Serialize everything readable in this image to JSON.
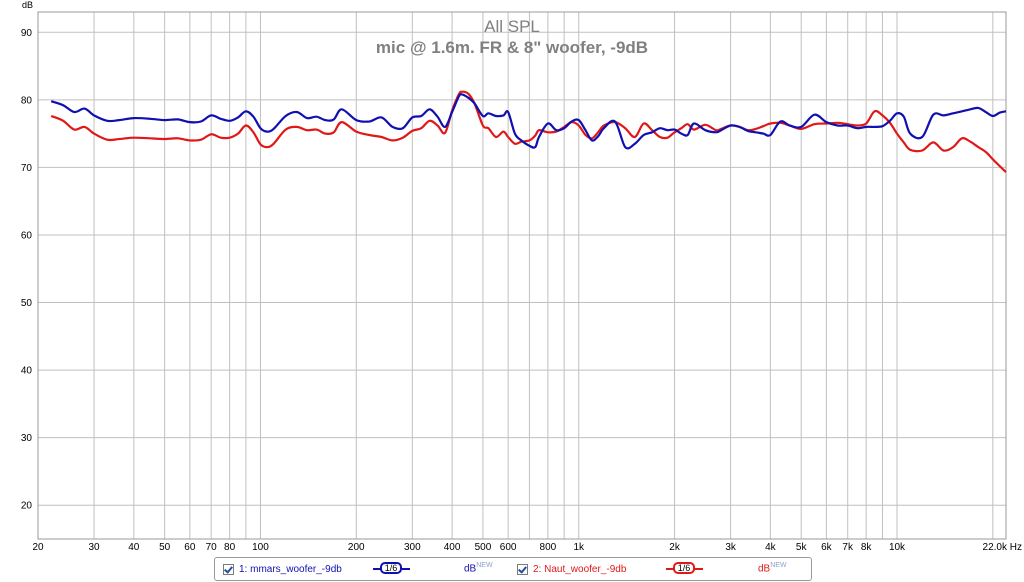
{
  "colors": {
    "series1": "#1010b0",
    "series2": "#e01818",
    "grid": "#c0c0c0",
    "title": "#808080",
    "axis": "#9a9a9a"
  },
  "chart_data": {
    "type": "line",
    "title": "All SPL",
    "subtitle": "mic @ 1.6m. FR & 8\" woofer, -9dB",
    "ylabel": "dB",
    "xlabel": "",
    "x_unit": "Hz",
    "x_scale": "log",
    "xlim": [
      20,
      22000
    ],
    "ylim": [
      15,
      93
    ],
    "y_ticks": [
      20,
      30,
      40,
      50,
      60,
      70,
      80,
      90
    ],
    "x_ticks": [
      {
        "v": 20,
        "label": "20"
      },
      {
        "v": 30,
        "label": "30"
      },
      {
        "v": 40,
        "label": "40"
      },
      {
        "v": 50,
        "label": "50"
      },
      {
        "v": 60,
        "label": "60"
      },
      {
        "v": 70,
        "label": "70"
      },
      {
        "v": 80,
        "label": "80"
      },
      {
        "v": 100,
        "label": "100"
      },
      {
        "v": 200,
        "label": "200"
      },
      {
        "v": 300,
        "label": "300"
      },
      {
        "v": 400,
        "label": "400"
      },
      {
        "v": 500,
        "label": "500"
      },
      {
        "v": 600,
        "label": "600"
      },
      {
        "v": 800,
        "label": "800"
      },
      {
        "v": 1000,
        "label": "1k"
      },
      {
        "v": 2000,
        "label": "2k"
      },
      {
        "v": 3000,
        "label": "3k"
      },
      {
        "v": 4000,
        "label": "4k"
      },
      {
        "v": 5000,
        "label": "5k"
      },
      {
        "v": 6000,
        "label": "6k"
      },
      {
        "v": 7000,
        "label": "7k"
      },
      {
        "v": 8000,
        "label": "8k"
      },
      {
        "v": 10000,
        "label": "10k"
      },
      {
        "v": 22000,
        "label": "22.0k Hz"
      }
    ],
    "grid": true,
    "series": [
      {
        "name": "1: mmars_woofer_-9db",
        "x": [
          22,
          24,
          26,
          28,
          30,
          33,
          36,
          40,
          45,
          50,
          55,
          60,
          65,
          70,
          75,
          80,
          85,
          90,
          95,
          100,
          105,
          110,
          120,
          130,
          140,
          150,
          160,
          170,
          180,
          200,
          220,
          240,
          260,
          280,
          300,
          320,
          340,
          360,
          380,
          400,
          420,
          430,
          450,
          470,
          500,
          520,
          550,
          580,
          600,
          630,
          660,
          700,
          730,
          750,
          800,
          850,
          900,
          950,
          1000,
          1050,
          1100,
          1150,
          1200,
          1300,
          1400,
          1500,
          1600,
          1700,
          1800,
          1900,
          2000,
          2100,
          2200,
          2300,
          2500,
          2700,
          2800,
          3000,
          3200,
          3400,
          3600,
          3800,
          4000,
          4300,
          4600,
          5000,
          5500,
          6000,
          6500,
          7000,
          7500,
          8000,
          8500,
          9000,
          9500,
          10000,
          10500,
          11000,
          12000,
          13000,
          14000,
          15000,
          16000,
          17000,
          18000,
          19000,
          20000,
          21000,
          22000
        ],
        "y": [
          79.8,
          79.2,
          78.2,
          78.7,
          77.7,
          76.9,
          77.0,
          77.3,
          77.2,
          77.0,
          77.1,
          76.7,
          76.8,
          77.7,
          77.2,
          76.9,
          77.4,
          78.3,
          77.5,
          75.8,
          75.3,
          75.7,
          77.6,
          78.2,
          77.3,
          77.5,
          77.0,
          77.1,
          78.6,
          77.0,
          76.8,
          77.4,
          76.0,
          75.8,
          77.4,
          77.6,
          78.6,
          77.5,
          76.0,
          78.2,
          80.5,
          80.8,
          80.3,
          79.5,
          77.6,
          78.0,
          77.6,
          77.7,
          78.2,
          75.0,
          74.0,
          73.2,
          73.0,
          74.5,
          76.5,
          75.5,
          75.8,
          76.8,
          77.0,
          75.5,
          74.0,
          74.6,
          75.8,
          76.8,
          73.0,
          73.5,
          74.8,
          75.2,
          75.8,
          75.5,
          75.6,
          75.0,
          74.8,
          76.5,
          75.5,
          75.2,
          75.5,
          76.2,
          76.0,
          75.4,
          75.2,
          75.0,
          74.8,
          76.8,
          76.2,
          76.0,
          77.8,
          76.7,
          76.2,
          76.2,
          75.8,
          76.0,
          76.0,
          76.1,
          76.9,
          78.0,
          77.5,
          75.0,
          74.5,
          77.8,
          77.7,
          78.0,
          78.3,
          78.6,
          78.8,
          78.2,
          77.6,
          78.1,
          78.3
        ]
      },
      {
        "name": "2: Naut_woofer_-9db",
        "x": [
          22,
          24,
          26,
          28,
          30,
          33,
          36,
          40,
          45,
          50,
          55,
          60,
          65,
          70,
          75,
          80,
          85,
          90,
          95,
          100,
          105,
          110,
          120,
          130,
          140,
          150,
          160,
          170,
          180,
          200,
          220,
          240,
          260,
          280,
          300,
          320,
          340,
          360,
          380,
          400,
          420,
          430,
          450,
          470,
          500,
          520,
          550,
          580,
          600,
          630,
          660,
          700,
          730,
          750,
          800,
          850,
          900,
          950,
          1000,
          1050,
          1100,
          1150,
          1200,
          1300,
          1400,
          1500,
          1600,
          1700,
          1800,
          1900,
          2000,
          2100,
          2200,
          2300,
          2500,
          2700,
          2800,
          3000,
          3200,
          3400,
          3600,
          3800,
          4000,
          4300,
          4600,
          5000,
          5500,
          6000,
          6500,
          7000,
          7500,
          8000,
          8500,
          9000,
          9500,
          10000,
          10500,
          11000,
          12000,
          13000,
          14000,
          15000,
          16000,
          17000,
          18000,
          19000,
          20000,
          21000,
          22000
        ],
        "y": [
          77.6,
          76.9,
          75.6,
          76.0,
          75.0,
          74.1,
          74.2,
          74.4,
          74.3,
          74.2,
          74.3,
          74.0,
          74.1,
          74.9,
          74.4,
          74.4,
          75.0,
          76.2,
          75.2,
          73.4,
          73.0,
          73.5,
          75.6,
          76.0,
          75.5,
          75.6,
          75.0,
          75.2,
          76.7,
          75.3,
          74.8,
          74.5,
          74.0,
          74.4,
          75.4,
          75.8,
          76.9,
          76.2,
          75.1,
          78.4,
          80.8,
          81.2,
          80.9,
          79.5,
          76.2,
          75.8,
          74.5,
          75.3,
          74.5,
          73.5,
          73.8,
          74.0,
          74.7,
          75.5,
          75.2,
          75.3,
          76.0,
          76.7,
          76.2,
          74.8,
          74.3,
          75.2,
          76.2,
          76.7,
          75.8,
          74.5,
          76.5,
          75.5,
          74.5,
          74.4,
          75.2,
          75.8,
          76.4,
          75.6,
          76.3,
          75.5,
          75.7,
          76.2,
          76.0,
          75.5,
          75.7,
          76.1,
          76.5,
          76.6,
          76.2,
          75.7,
          76.4,
          76.5,
          76.6,
          76.4,
          76.2,
          76.5,
          78.3,
          77.7,
          76.6,
          75.0,
          73.7,
          72.6,
          72.5,
          73.7,
          72.5,
          73.0,
          74.3,
          73.8,
          73.0,
          72.3,
          71.2,
          70.2,
          69.3
        ]
      }
    ]
  },
  "legend": {
    "item1_label": "1: mmars_woofer_-9db",
    "item1_smoothing": "1/6",
    "item1_unit": "dB",
    "item1_unit_sup": "NEW",
    "item2_label": "2: Naut_woofer_-9db",
    "item2_smoothing": "1/6",
    "item2_unit": "dB",
    "item2_unit_sup": "NEW"
  }
}
